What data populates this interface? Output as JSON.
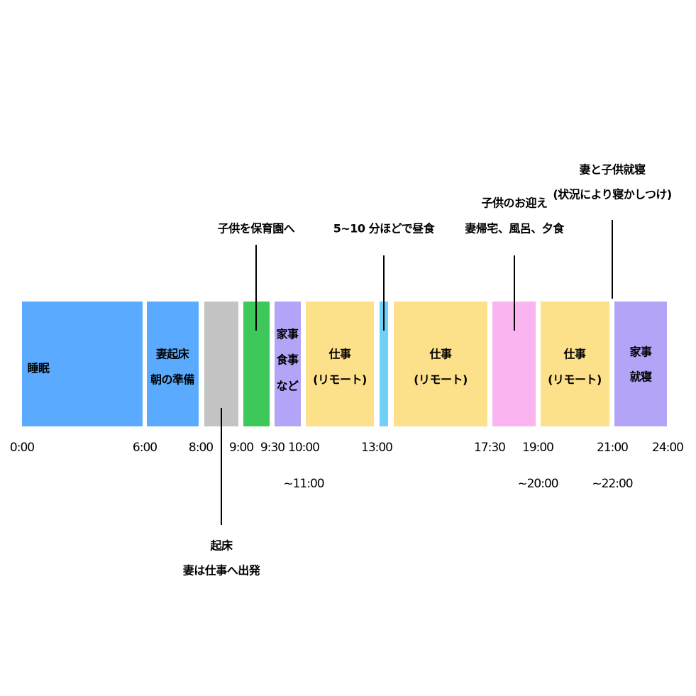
{
  "blocks": [
    {
      "lines": [
        "睡眠"
      ]
    },
    {
      "lines": [
        "妻起床",
        "朝の準備"
      ]
    },
    {
      "lines": []
    },
    {
      "lines": []
    },
    {
      "lines": [
        "家事",
        "食事",
        "など"
      ]
    },
    {
      "lines": [
        "仕事",
        "(リモート)"
      ]
    },
    {
      "lines": []
    },
    {
      "lines": [
        "仕事",
        "(リモート)"
      ]
    },
    {
      "lines": []
    },
    {
      "lines": [
        "仕事",
        "(リモート)"
      ]
    },
    {
      "lines": [
        "家事",
        "就寝"
      ]
    }
  ],
  "times": [
    "0:00",
    "6:00",
    "8:00",
    "9:00",
    "9:30",
    "10:00",
    "13:00",
    "17:30",
    "19:00",
    "21:00",
    "24:00"
  ],
  "time_ends": [
    "~11:00",
    "~20:00",
    "~22:00"
  ],
  "annotations": [
    {
      "lines": [
        "子供を保育園へ"
      ]
    },
    {
      "lines": [
        "5~10 分ほどで昼食"
      ]
    },
    {
      "lines": [
        "子供のお迎え",
        "妻帰宅、風呂、夕食"
      ]
    },
    {
      "lines": [
        "妻と子供就寝",
        "(状況により寝かしつけ)"
      ]
    },
    {
      "lines": [
        "起床",
        "妻は仕事へ出発"
      ]
    }
  ]
}
